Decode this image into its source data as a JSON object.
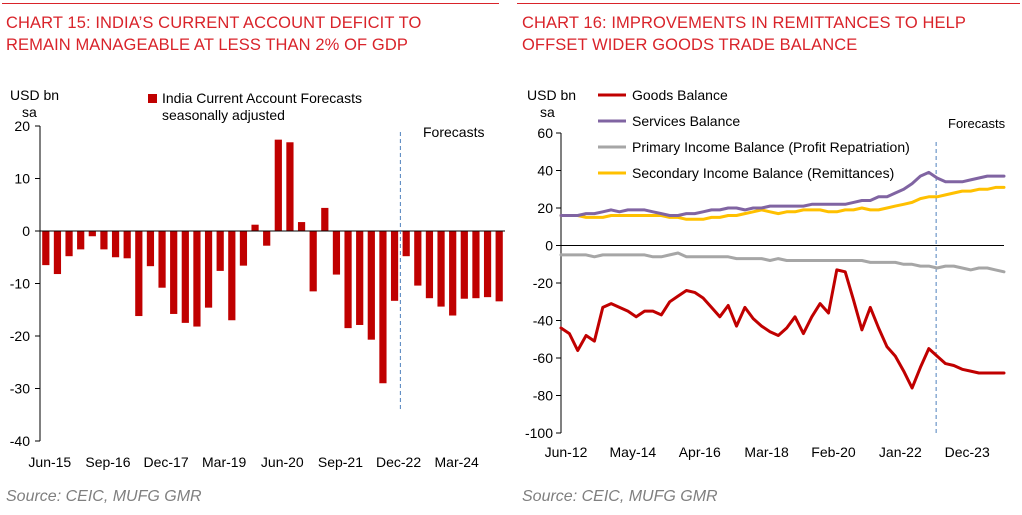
{
  "left": {
    "title": "CHART 15: INDIA’S CURRENT ACCOUNT DEFICIT TO\nREMAIN MANAGEABLE AT LESS THAN 2% OF GDP",
    "source": "Source: CEIC, MUFG GMR"
  },
  "right": {
    "title": "CHART 16: IMPROVEMENTS IN REMITTANCES TO HELP\nOFFSET WIDER GOODS TRADE BALANCE",
    "source": "Source: CEIC, MUFG GMR"
  },
  "chart_data": [
    {
      "type": "bar",
      "title": "CHART 15: INDIA’S CURRENT ACCOUNT DEFICIT TO REMAIN MANAGEABLE AT LESS THAN 2% OF GDP",
      "ylabel": "USD bn sa",
      "ylabel_lines": [
        "USD bn",
        "sa"
      ],
      "ylim": [
        -40,
        20
      ],
      "yticks": [
        -40,
        -30,
        -20,
        -10,
        0,
        10,
        20
      ],
      "xtick_labels": [
        "Jun-15",
        "Sep-16",
        "Dec-17",
        "Mar-19",
        "Jun-20",
        "Sep-21",
        "Dec-22",
        "Mar-24"
      ],
      "series": [
        {
          "name": "India Current Account Forecasts seasonally adjusted",
          "legend_lines": [
            "India Current Account Forecasts",
            "seasonally adjusted"
          ],
          "color": "#c00000",
          "values": [
            -6.5,
            -8.2,
            -4.8,
            -3.5,
            -1.0,
            -3.5,
            -5.0,
            -5.2,
            -16.2,
            -6.7,
            -10.8,
            -15.8,
            -17.5,
            -18.2,
            -14.6,
            -7.6,
            -17.0,
            -6.6,
            1.2,
            -2.8,
            17.4,
            16.9,
            1.7,
            -11.5,
            4.4,
            -8.3,
            -18.5,
            -17.9,
            -20.7,
            -29.0,
            -13.3,
            -4.8,
            -10.4,
            -12.8,
            -14.4,
            -16.1,
            -12.9,
            -12.8,
            -12.6,
            -13.4
          ]
        }
      ],
      "forecast_label": "Forecasts",
      "forecast_start_index": 31
    },
    {
      "type": "line",
      "title": "CHART 16: IMPROVEMENTS IN REMITTANCES TO HELP OFFSET WIDER GOODS TRADE BALANCE",
      "ylabel": "USD bn sa",
      "ylabel_lines": [
        "USD bn",
        "sa"
      ],
      "ylim": [
        -100,
        60
      ],
      "yticks": [
        -100,
        -80,
        -60,
        -40,
        -20,
        0,
        20,
        40,
        60
      ],
      "xtick_labels": [
        "Jun-12",
        "May-14",
        "Apr-16",
        "Mar-18",
        "Feb-20",
        "Jan-22",
        "Dec-23"
      ],
      "forecast_label": "Forecasts",
      "forecast_start_index": 45,
      "series": [
        {
          "name": "Goods Balance",
          "color": "#c00000",
          "values": [
            -44,
            -47,
            -56,
            -48,
            -51,
            -33,
            -31,
            -33,
            -35,
            -38,
            -35,
            -35,
            -37,
            -30,
            -27,
            -24,
            -25,
            -28,
            -33,
            -38,
            -32,
            -43,
            -33,
            -39,
            -43,
            -46,
            -48,
            -44,
            -38,
            -47,
            -38,
            -31,
            -36,
            -13,
            -14,
            -29,
            -45,
            -33,
            -44,
            -54,
            -59,
            -67,
            -76,
            -65,
            -55,
            -59,
            -63,
            -64,
            -66,
            -67,
            -68,
            -68,
            -68,
            -68
          ]
        },
        {
          "name": "Services Balance",
          "color": "#8064a2",
          "values": [
            16,
            16,
            16,
            17,
            17,
            18,
            19,
            18,
            19,
            19,
            19,
            18,
            17,
            16,
            16,
            17,
            17,
            18,
            19,
            19,
            20,
            20,
            19,
            20,
            20,
            21,
            21,
            21,
            21,
            21,
            22,
            22,
            22,
            22,
            22,
            23,
            24,
            24,
            26,
            26,
            28,
            30,
            33,
            37,
            39,
            36,
            34,
            34,
            34,
            35,
            36,
            37,
            37,
            37
          ]
        },
        {
          "name": "Primary Income Balance (Profit Repatriation)",
          "color": "#a6a6a6",
          "values": [
            -5,
            -5,
            -5,
            -5,
            -6,
            -5,
            -5,
            -5,
            -5,
            -5,
            -5,
            -6,
            -6,
            -5,
            -4,
            -6,
            -6,
            -6,
            -6,
            -6,
            -6,
            -7,
            -7,
            -7,
            -7,
            -8,
            -7,
            -8,
            -8,
            -8,
            -8,
            -8,
            -8,
            -8,
            -8,
            -8,
            -8,
            -9,
            -9,
            -9,
            -9,
            -10,
            -10,
            -11,
            -11,
            -12,
            -11,
            -11,
            -12,
            -13,
            -12,
            -12,
            -13,
            -14
          ]
        },
        {
          "name": "Secondary Income Balance (Remittances)",
          "color": "#ffc000",
          "values": [
            16,
            16,
            16,
            15,
            15,
            15,
            16,
            16,
            16,
            16,
            16,
            16,
            16,
            15,
            15,
            14,
            14,
            14,
            15,
            15,
            16,
            16,
            17,
            18,
            19,
            18,
            17,
            18,
            18,
            19,
            19,
            19,
            18,
            18,
            19,
            19,
            20,
            19,
            19,
            20,
            21,
            22,
            23,
            25,
            26,
            26,
            27,
            28,
            29,
            29,
            30,
            30,
            31,
            31
          ]
        }
      ]
    }
  ]
}
